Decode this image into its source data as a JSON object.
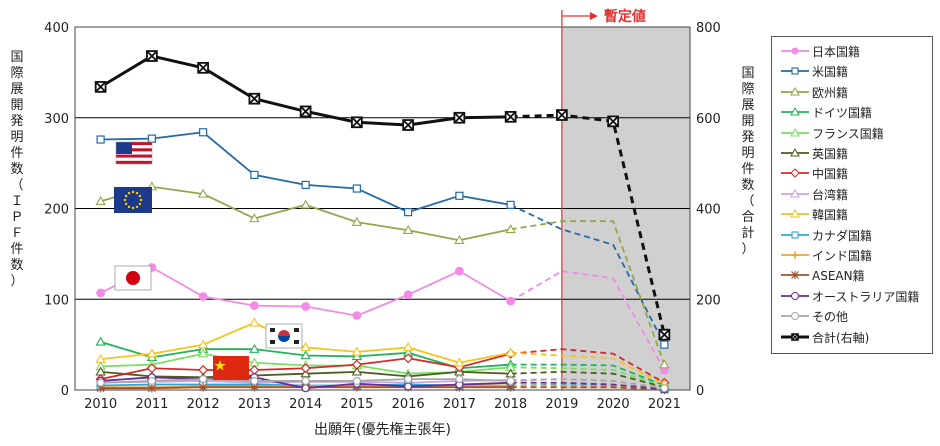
{
  "chart_data": {
    "type": "line",
    "xlabel": "出願年(優先権主張年)",
    "ylabel_left": "国際展開発明件数（ＩＰＦ件数）",
    "ylabel_right": "国際展開発明件数（合計）",
    "x": [
      2010,
      2011,
      2012,
      2013,
      2014,
      2015,
      2016,
      2017,
      2018,
      2019,
      2020,
      2021
    ],
    "ylim_left": [
      0,
      400
    ],
    "yticks_left": [
      "0",
      "100",
      "200",
      "300",
      "400"
    ],
    "ylim_right": [
      0,
      800
    ],
    "yticks_right": [
      "0",
      "200",
      "400",
      "600",
      "800"
    ],
    "provisional_label": "暫定値",
    "provisional_from": 2019,
    "series": [
      {
        "name": "日本国籍",
        "color": "#f28ae6",
        "marker": "circle-filled",
        "axis": "left",
        "values": [
          107,
          135,
          103,
          93,
          92,
          82,
          105,
          131,
          98,
          131,
          123,
          22
        ]
      },
      {
        "name": "米国籍",
        "color": "#2469a8",
        "marker": "square",
        "axis": "left",
        "values": [
          276,
          277,
          284,
          237,
          226,
          222,
          196,
          214,
          204,
          177,
          160,
          50
        ]
      },
      {
        "name": "欧州籍",
        "color": "#8eaa4a",
        "marker": "triangle",
        "axis": "left",
        "values": [
          208,
          224,
          216,
          189,
          204,
          185,
          176,
          165,
          177,
          186,
          186,
          28
        ]
      },
      {
        "name": "ドイツ国籍",
        "color": "#22b35a",
        "marker": "triangle",
        "axis": "left",
        "values": [
          53,
          36,
          45,
          45,
          38,
          37,
          41,
          24,
          28,
          28,
          27,
          5
        ]
      },
      {
        "name": "フランス国籍",
        "color": "#78e060",
        "marker": "triangle",
        "axis": "left",
        "values": [
          26,
          28,
          40,
          30,
          27,
          27,
          18,
          20,
          25,
          24,
          22,
          4
        ]
      },
      {
        "name": "英国籍",
        "color": "#4e5a20",
        "marker": "triangle",
        "axis": "left",
        "values": [
          20,
          15,
          14,
          16,
          18,
          20,
          15,
          20,
          18,
          20,
          18,
          3
        ]
      },
      {
        "name": "中国籍",
        "color": "#d42a2a",
        "marker": "diamond",
        "axis": "left",
        "values": [
          12,
          24,
          22,
          22,
          24,
          28,
          35,
          25,
          40,
          45,
          40,
          8
        ]
      },
      {
        "name": "台湾籍",
        "color": "#c9a3e8",
        "marker": "triangle",
        "axis": "left",
        "values": [
          8,
          9,
          10,
          8,
          9,
          9,
          8,
          10,
          11,
          12,
          10,
          2
        ]
      },
      {
        "name": "韓国籍",
        "color": "#f5c518",
        "marker": "triangle",
        "axis": "left",
        "values": [
          34,
          40,
          50,
          74,
          47,
          42,
          47,
          30,
          41,
          38,
          35,
          6
        ]
      },
      {
        "name": "カナダ国籍",
        "color": "#2fa8d5",
        "marker": "square",
        "axis": "left",
        "values": [
          5,
          6,
          6,
          6,
          5,
          5,
          6,
          5,
          5,
          6,
          5,
          1
        ]
      },
      {
        "name": "インド国籍",
        "color": "#f5a23c",
        "marker": "plus",
        "axis": "left",
        "values": [
          3,
          3,
          4,
          4,
          4,
          4,
          4,
          5,
          5,
          5,
          4,
          1
        ]
      },
      {
        "name": "ASEAN籍",
        "color": "#a0522d",
        "marker": "star",
        "axis": "left",
        "values": [
          2,
          2,
          3,
          3,
          3,
          3,
          3,
          3,
          3,
          3,
          3,
          0
        ]
      },
      {
        "name": "オーストラリア国籍",
        "color": "#6a2d91",
        "marker": "circle",
        "axis": "left",
        "values": [
          10,
          14,
          12,
          14,
          2,
          7,
          4,
          6,
          8,
          8,
          6,
          1
        ]
      },
      {
        "name": "その他",
        "color": "#a6a6a6",
        "marker": "circle",
        "axis": "left",
        "values": [
          8,
          10,
          12,
          10,
          10,
          10,
          12,
          12,
          10,
          12,
          10,
          2
        ]
      },
      {
        "name": "合計(右軸)",
        "color": "#111111",
        "marker": "box-x",
        "axis": "right",
        "values": [
          668,
          736,
          710,
          642,
          614,
          590,
          584,
          600,
          602,
          606,
          592,
          122
        ]
      }
    ]
  }
}
